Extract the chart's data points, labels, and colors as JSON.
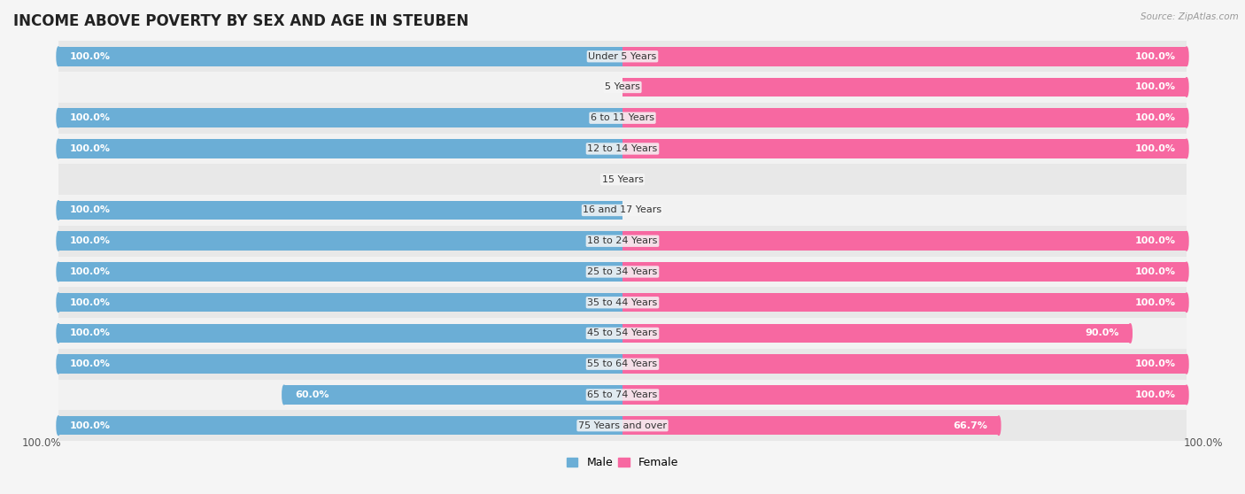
{
  "title": "INCOME ABOVE POVERTY BY SEX AND AGE IN STEUBEN",
  "source": "Source: ZipAtlas.com",
  "categories": [
    "Under 5 Years",
    "5 Years",
    "6 to 11 Years",
    "12 to 14 Years",
    "15 Years",
    "16 and 17 Years",
    "18 to 24 Years",
    "25 to 34 Years",
    "35 to 44 Years",
    "45 to 54 Years",
    "55 to 64 Years",
    "65 to 74 Years",
    "75 Years and over"
  ],
  "male_values": [
    100.0,
    0.0,
    100.0,
    100.0,
    0.0,
    100.0,
    100.0,
    100.0,
    100.0,
    100.0,
    100.0,
    60.0,
    100.0
  ],
  "female_values": [
    100.0,
    100.0,
    100.0,
    100.0,
    0.0,
    0.0,
    100.0,
    100.0,
    100.0,
    90.0,
    100.0,
    100.0,
    66.7
  ],
  "male_color": "#6baed6",
  "female_color": "#f768a1",
  "male_color_light": "#c6dbef",
  "female_color_light": "#fbb4ca",
  "bg_color": "#f5f5f5",
  "row_color_dark": "#e8e8e8",
  "row_color_light": "#f2f2f2",
  "max_value": 100.0,
  "title_fontsize": 12,
  "label_fontsize": 8,
  "axis_fontsize": 8.5,
  "legend_fontsize": 9,
  "bar_height": 0.62
}
